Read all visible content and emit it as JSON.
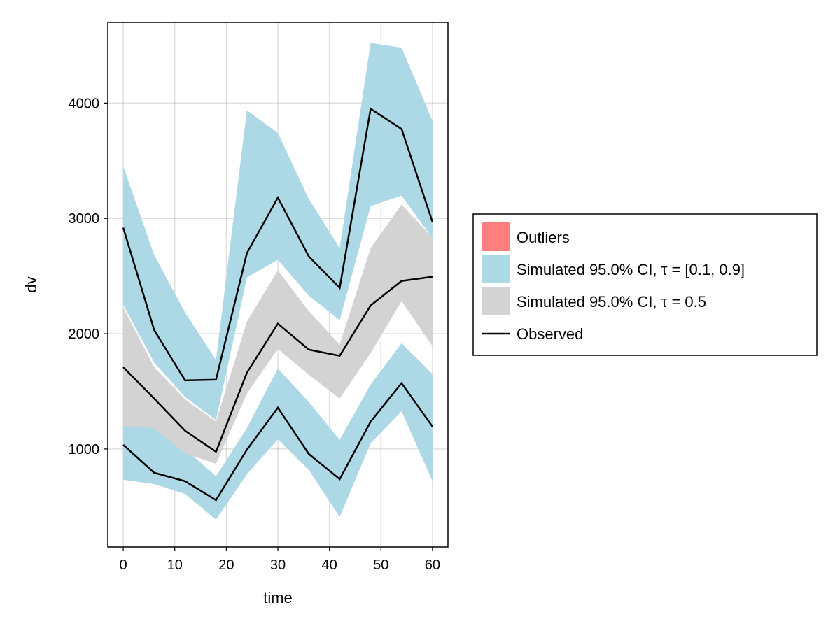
{
  "chart_data": {
    "type": "area",
    "xlabel": "time",
    "ylabel": "dv",
    "xlim": [
      -3,
      63
    ],
    "ylim": [
      150,
      4700
    ],
    "xticks": [
      0,
      10,
      20,
      30,
      40,
      50,
      60
    ],
    "yticks": [
      1000,
      2000,
      3000,
      4000
    ],
    "grid": true,
    "legend_position": "right",
    "x": [
      0,
      6,
      12,
      18,
      24,
      30,
      36,
      42,
      48,
      54,
      60
    ],
    "bands": [
      {
        "name": "Simulated 95.0% CI, τ = [0.1, 0.9]",
        "quantile": "upper",
        "color": "#ADD8E6",
        "lower": [
          2250,
          1750,
          1450,
          1250,
          2488,
          2640,
          2330,
          2117,
          3107,
          3198,
          2828
        ],
        "upper": [
          3453,
          2682,
          2184,
          1771,
          3939,
          3739,
          3168,
          2743,
          4522,
          4480,
          3848
        ]
      },
      {
        "name": "Simulated 95.0% CI, τ = [0.1, 0.9]",
        "quantile": "lower",
        "color": "#ADD8E6",
        "lower": [
          733,
          696,
          611,
          387,
          781,
          1085,
          818,
          411,
          1049,
          1328,
          721
        ],
        "upper": [
          1200,
          1194,
          1000,
          763,
          1182,
          1698,
          1407,
          1079,
          1559,
          1917,
          1650
        ]
      },
      {
        "name": "Simulated 95.0% CI, τ = 0.5",
        "quantile": "median",
        "color": "#D3D3D3",
        "lower": [
          1200,
          1180,
          963,
          872,
          1480,
          1868,
          1644,
          1437,
          1832,
          2281,
          1893
        ],
        "upper": [
          2227,
          1710,
          1430,
          1237,
          2105,
          2549,
          2196,
          1905,
          2743,
          3120,
          2834
        ]
      }
    ],
    "series": [
      {
        "name": "Observed",
        "quantile": "upper",
        "color": "#000000",
        "values": [
          2919,
          2032,
          1595,
          1601,
          2700,
          3180,
          2670,
          2397,
          3951,
          3775,
          2968
        ]
      },
      {
        "name": "Observed",
        "quantile": "median",
        "color": "#000000",
        "values": [
          1710,
          1437,
          1158,
          976,
          1662,
          2087,
          1862,
          1808,
          2245,
          2457,
          2494
        ]
      },
      {
        "name": "Observed",
        "quantile": "lower",
        "color": "#000000",
        "values": [
          1036,
          794,
          721,
          557,
          994,
          1358,
          957,
          739,
          1237,
          1571,
          1194
        ]
      }
    ],
    "legend": [
      {
        "label": "Outliers",
        "kind": "patch",
        "color": "#FF7F7F"
      },
      {
        "label": "Simulated 95.0% CI, τ = [0.1, 0.9]",
        "kind": "patch",
        "color": "#ADD8E6"
      },
      {
        "label": "Simulated 95.0% CI, τ = 0.5",
        "kind": "patch",
        "color": "#D3D3D3"
      },
      {
        "label": "Observed",
        "kind": "line",
        "color": "#000000"
      }
    ]
  }
}
